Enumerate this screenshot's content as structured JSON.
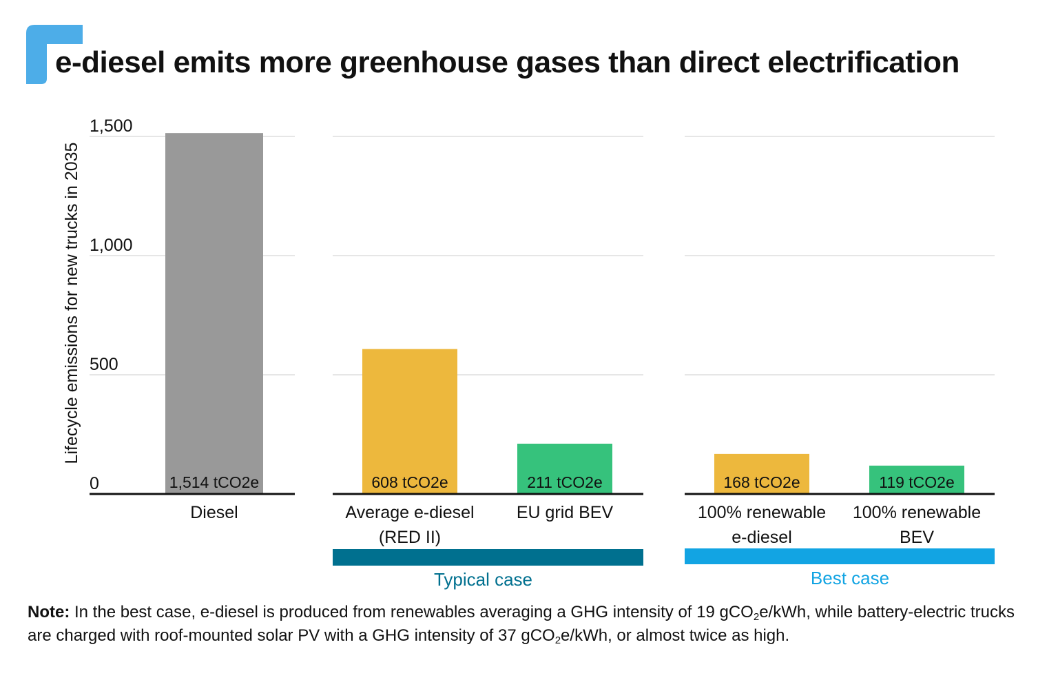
{
  "title": "e-diesel emits more greenhouse gases than direct electrification",
  "note": {
    "label": "Note:",
    "text": "In the best case, e-diesel is produced from renewables averaging a GHG intensity of 19 gCO₂e/kWh, while battery-electric trucks are charged with roof-mounted solar PV with a GHG intensity of 37 gCO₂e/kWh, or almost twice as high."
  },
  "chart_data": {
    "type": "bar",
    "title": "e-diesel emits more greenhouse gases than direct electrification",
    "ylabel": "Lifecycle emissions for new trucks in 2035",
    "ylim": [
      0,
      1500
    ],
    "yticks": [
      0,
      500,
      1000,
      1500
    ],
    "ytick_labels": [
      "0",
      "500",
      "1,000",
      "1,500"
    ],
    "grid": true,
    "categories": [
      "Diesel",
      "Average e-diesel (RED II)",
      "EU grid BEV",
      "100% renewable e-diesel",
      "100% renewable BEV"
    ],
    "category_lines": [
      [
        "Diesel"
      ],
      [
        "Average e-diesel",
        "(RED II)"
      ],
      [
        "EU grid BEV"
      ],
      [
        "100% renewable",
        "e-diesel"
      ],
      [
        "100% renewable",
        "BEV"
      ]
    ],
    "values": [
      1514,
      608,
      211,
      168,
      119
    ],
    "value_labels": [
      "1,514 tCO2e",
      "608 tCO2e",
      "211 tCO2e",
      "168 tCO2e",
      "119 tCO2e"
    ],
    "bar_colors": [
      "#999999",
      "#EDB83D",
      "#36C27C",
      "#EDB83D",
      "#36C27C"
    ],
    "groups": [
      {
        "label": "",
        "members": [
          0
        ]
      },
      {
        "label": "Typical case",
        "members": [
          1,
          2
        ],
        "color": "#00708F"
      },
      {
        "label": "Best case",
        "members": [
          3,
          4
        ],
        "color": "#12A4E3"
      }
    ]
  },
  "colors": {
    "brand_mark": "#4DADE8",
    "grid": "#DDDDDD",
    "axis": "#111111"
  }
}
